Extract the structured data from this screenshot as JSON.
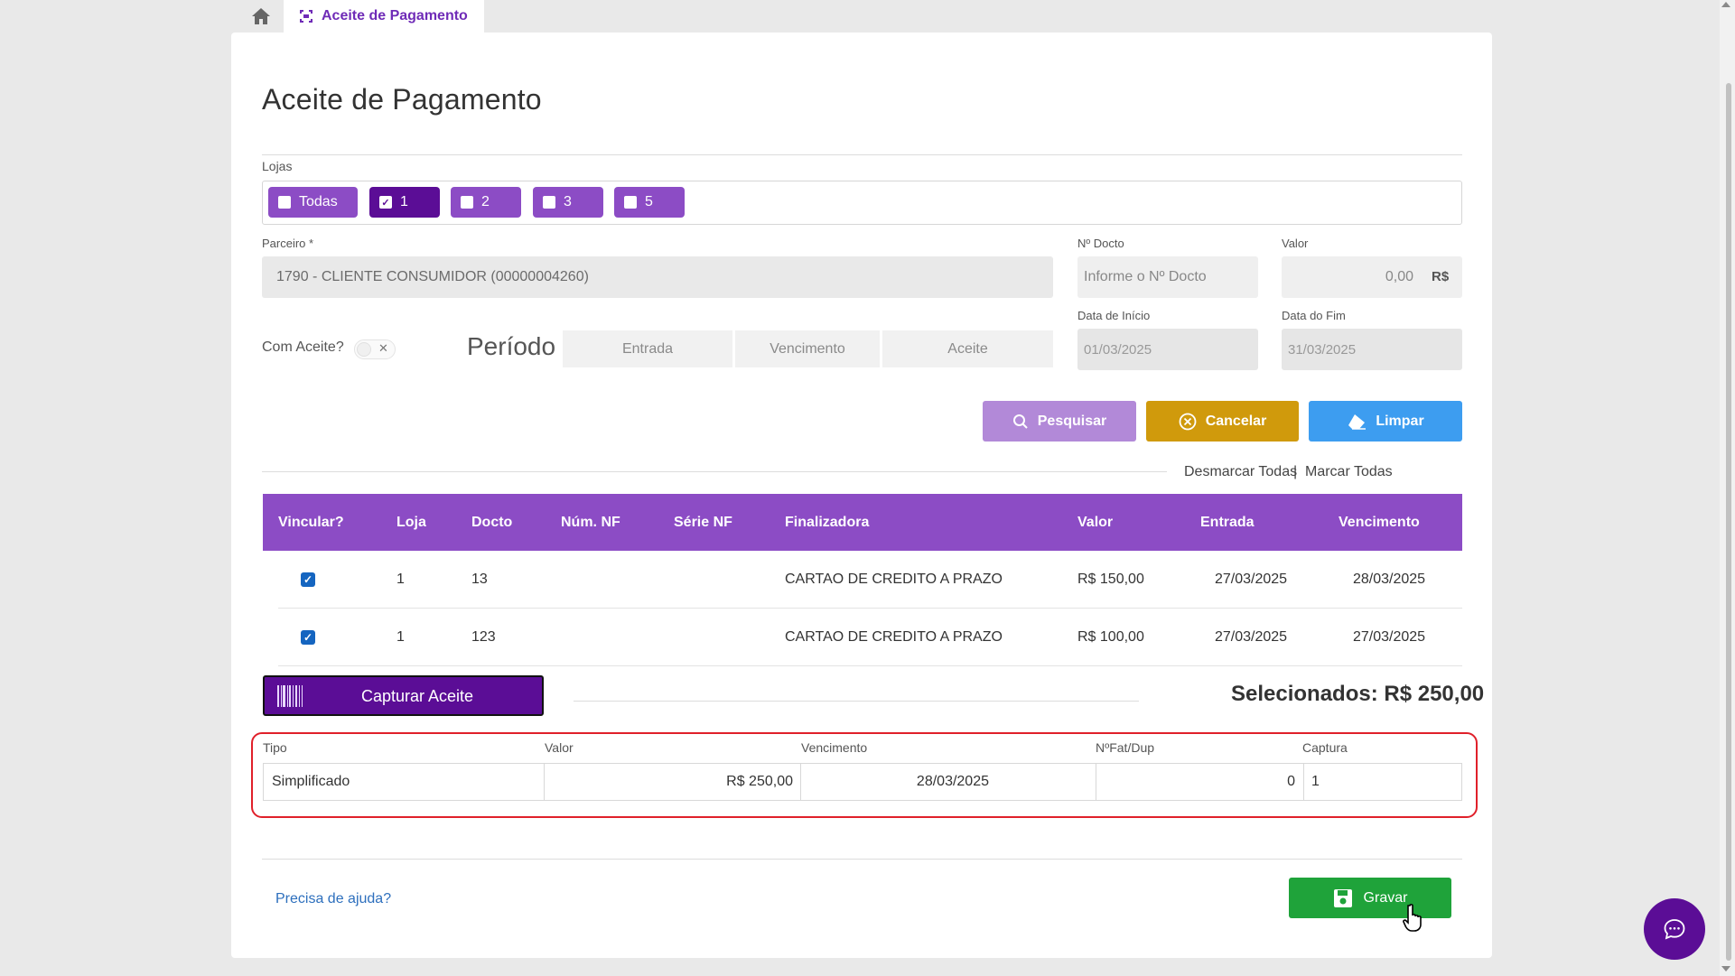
{
  "tabs": {
    "active_label": "Aceite de Pagamento"
  },
  "page": {
    "title": "Aceite de Pagamento"
  },
  "lojas": {
    "label": "Lojas",
    "chips": [
      {
        "label": "Todas",
        "checked": false
      },
      {
        "label": "1",
        "checked": true
      },
      {
        "label": "2",
        "checked": false
      },
      {
        "label": "3",
        "checked": false
      },
      {
        "label": "5",
        "checked": false
      }
    ]
  },
  "form": {
    "parceiro_label": "Parceiro *",
    "parceiro_value": "1790 - CLIENTE CONSUMIDOR (00000004260)",
    "docto_label": "Nº Docto",
    "docto_placeholder": "Informe o Nº Docto",
    "valor_label": "Valor",
    "valor_value": "0,00",
    "valor_currency": "R$",
    "com_aceite_label": "Com Aceite?",
    "com_aceite_on": false,
    "toggle_x": "✕",
    "periodo_label": "Período",
    "periodo_options": [
      "Entrada",
      "Vencimento",
      "Aceite"
    ],
    "data_inicio_label": "Data de Início",
    "data_inicio_value": "01/03/2025",
    "data_fim_label": "Data do Fim",
    "data_fim_value": "31/03/2025"
  },
  "actions": {
    "pesquisar": "Pesquisar",
    "cancelar": "Cancelar",
    "limpar": "Limpar",
    "desmarcar_todas": "Desmarcar Todas",
    "separator": "|",
    "marcar_todas": "Marcar Todas"
  },
  "table": {
    "headers": [
      "Vincular?",
      "Loja",
      "Docto",
      "Núm. NF",
      "Série NF",
      "Finalizadora",
      "Valor",
      "Entrada",
      "Vencimento"
    ],
    "rows": [
      {
        "vincular": true,
        "loja": "1",
        "docto": "13",
        "num_nf": "",
        "serie_nf": "",
        "finalizadora": "CARTAO DE CREDITO A PRAZO",
        "valor": "R$ 150,00",
        "entrada": "27/03/2025",
        "vencimento": "28/03/2025"
      },
      {
        "vincular": true,
        "loja": "1",
        "docto": "123",
        "num_nf": "",
        "serie_nf": "",
        "finalizadora": "CARTAO DE CREDITO A PRAZO",
        "valor": "R$ 100,00",
        "entrada": "27/03/2025",
        "vencimento": "27/03/2025"
      }
    ],
    "check_glyph": "✓"
  },
  "capture": {
    "button_label": "Capturar Aceite",
    "selected_total": "Selecionados: R$ 250,00"
  },
  "aceite_grid": {
    "headers": [
      "Tipo",
      "Valor",
      "Vencimento",
      "NºFat/Dup",
      "Captura"
    ],
    "row": {
      "tipo": "Simplificado",
      "valor": "R$ 250,00",
      "vencimento": "28/03/2025",
      "fat_dup": "0",
      "captura": "1"
    }
  },
  "footer": {
    "help_link": "Precisa de ajuda?",
    "gravar": "Gravar"
  },
  "colors": {
    "brand_purple": "#8c4cc5",
    "dark_purple": "#5b0d96",
    "pesquisar_bg": "#b289d8",
    "cancelar_bg": "#d09a0c",
    "limpar_bg": "#3d9df0",
    "gravar_bg": "#1fa33a",
    "highlight_border": "#e0202a"
  }
}
